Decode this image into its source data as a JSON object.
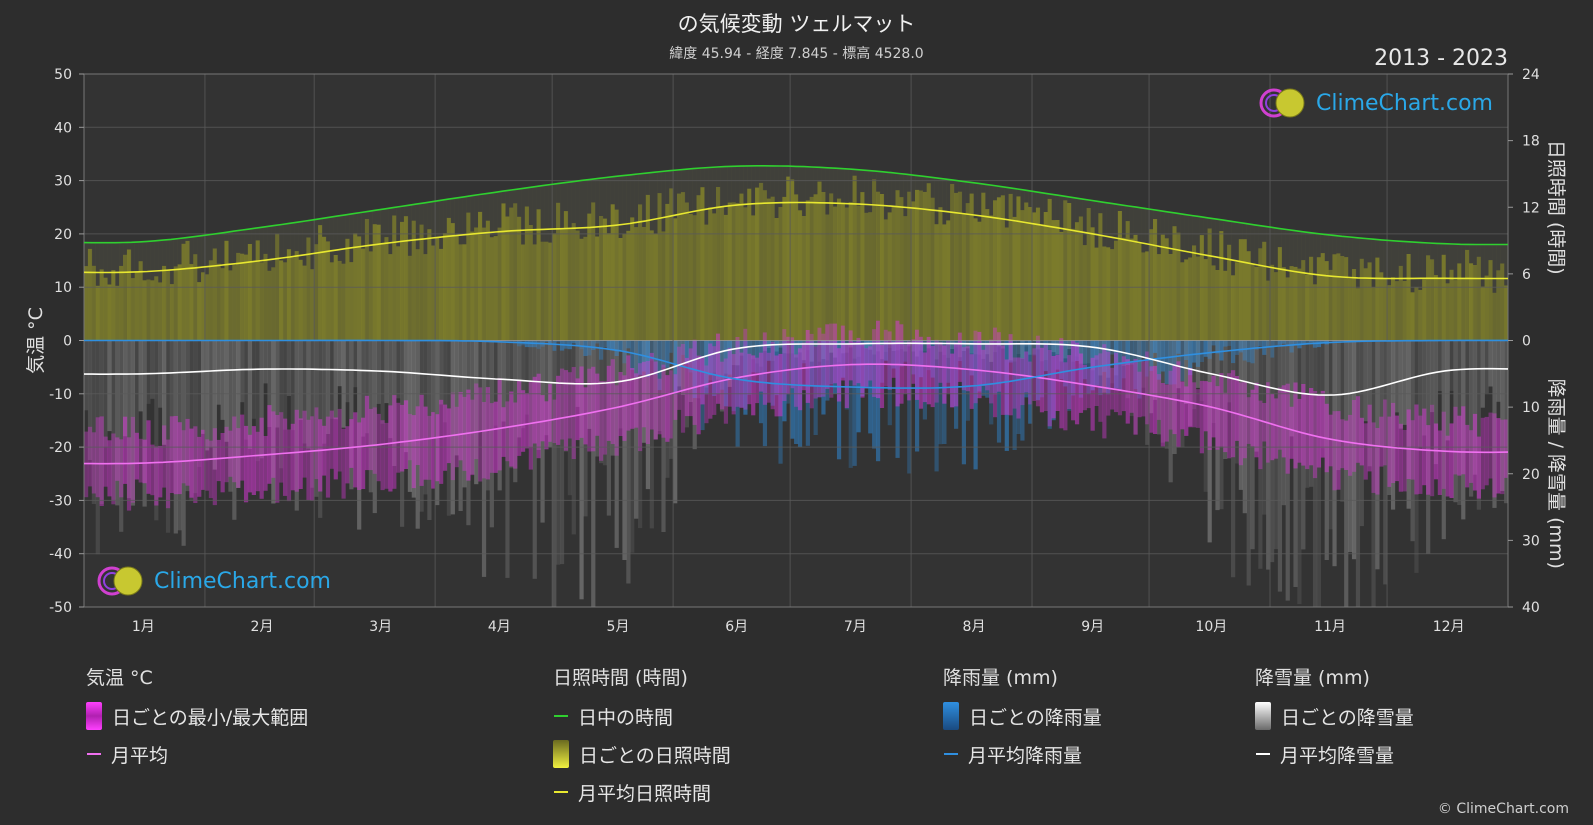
{
  "header": {
    "title": "の気候変動 ツェルマット",
    "subtitle": "緯度 45.94 - 経度 7.845 - 標高 4528.0",
    "years": "2013 - 2023"
  },
  "brand": {
    "name": "ClimeChart.com",
    "copyright": "© ClimeChart.com"
  },
  "legend": {
    "temperature": {
      "title": "気温 °C",
      "range": "日ごとの最小/最大範囲",
      "mean": "月平均"
    },
    "sunshine": {
      "title": "日照時間 (時間)",
      "daylight": "日中の時間",
      "daily": "日ごとの日照時間",
      "mean": "月平均日照時間"
    },
    "rain": {
      "title": "降雨量 (mm)",
      "daily": "日ごとの降雨量",
      "mean": "月平均降雨量"
    },
    "snow": {
      "title": "降雪量 (mm)",
      "daily": "日ごとの降雪量",
      "mean": "月平均降雪量"
    }
  },
  "colors": {
    "background": "#2d2d2d",
    "grid": "#5a5a5a",
    "daylight": "#2fd02f",
    "sunshine_mean": "#e8e830",
    "sunshine_fill": "#8a8a28",
    "temp_range": "#d838d8",
    "temp_mean": "#f070f0",
    "rain": "#2f8fe0",
    "snow": "#9a9a9a",
    "snow_mean": "#ffffff",
    "brand_blue": "#2aa8e8"
  },
  "chart_data": {
    "type": "line",
    "categories": [
      "1月",
      "2月",
      "3月",
      "4月",
      "5月",
      "6月",
      "7月",
      "8月",
      "9月",
      "10月",
      "11月",
      "12月"
    ],
    "axes": {
      "left": {
        "label": "気温 °C",
        "ticks": [
          50,
          40,
          30,
          20,
          10,
          0,
          -10,
          -20,
          -30,
          -40,
          -50
        ],
        "range": [
          -50,
          50
        ]
      },
      "right_top": {
        "label": "日照時間 (時間)",
        "ticks": [
          24,
          18,
          12,
          6,
          0
        ],
        "range": [
          0,
          24
        ]
      },
      "right_bottom": {
        "label": "降雨量 / 降雪量 (mm)",
        "ticks": [
          0,
          10,
          20,
          30,
          40
        ],
        "range": [
          0,
          40
        ]
      }
    },
    "grid": true,
    "series": [
      {
        "name": "日中の時間",
        "axis": "right_top",
        "values": [
          8.9,
          10.2,
          11.8,
          13.4,
          14.8,
          15.7,
          15.4,
          14.2,
          12.6,
          11.0,
          9.5,
          8.7
        ]
      },
      {
        "name": "月平均日照時間",
        "axis": "right_top",
        "values": [
          6.2,
          7.2,
          8.7,
          9.8,
          10.4,
          12.2,
          12.3,
          11.3,
          9.6,
          7.6,
          5.8,
          5.6
        ]
      },
      {
        "name": "月平均",
        "axis": "left",
        "values": [
          -23.0,
          -21.5,
          -19.5,
          -16.5,
          -12.5,
          -7.0,
          -4.5,
          -5.5,
          -8.5,
          -12.5,
          -18.5,
          -20.8
        ]
      },
      {
        "name": "月平均降雨量",
        "axis": "right_bottom",
        "values": [
          0.0,
          0.0,
          0.0,
          0.2,
          1.5,
          5.8,
          7.0,
          6.8,
          4.0,
          1.8,
          0.3,
          0.0
        ]
      },
      {
        "name": "月平均降雪量",
        "axis": "right_bottom",
        "values": [
          5.0,
          4.3,
          4.6,
          5.8,
          6.2,
          1.2,
          0.5,
          0.5,
          1.0,
          5.0,
          8.2,
          4.5
        ]
      }
    ],
    "daily_temp_range": {
      "name": "日ごとの最小/最大範囲",
      "min": [
        -29,
        -28,
        -26,
        -23,
        -19,
        -13,
        -10,
        -11,
        -15,
        -19,
        -25,
        -27
      ],
      "max": [
        -17,
        -15,
        -13,
        -10,
        -6,
        -1,
        1,
        0,
        -3,
        -7,
        -12,
        -15
      ]
    }
  }
}
